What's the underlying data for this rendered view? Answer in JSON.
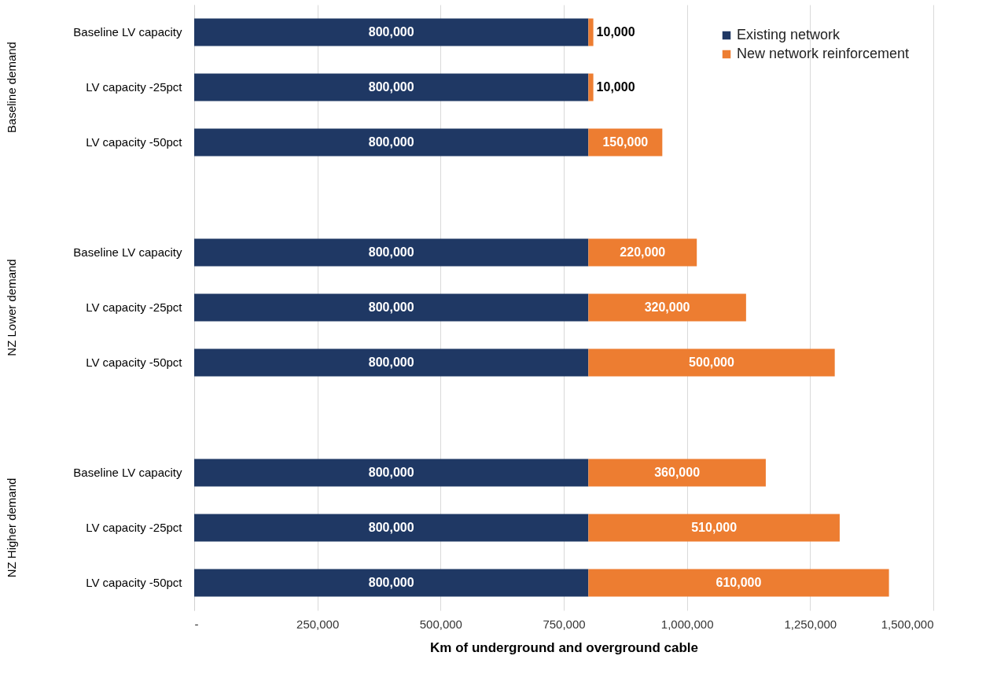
{
  "chart_data": {
    "type": "bar",
    "orientation": "horizontal",
    "stacked": true,
    "xlabel": "Km of underground and overground cable",
    "categories": [
      "Baseline LV capacity",
      "LV capacity -25pct",
      "LV capacity -50pct",
      null,
      "Baseline LV capacity",
      "LV capacity -25pct",
      "LV capacity -50pct",
      null,
      "Baseline LV capacity",
      "LV capacity -25pct",
      "LV capacity -50pct"
    ],
    "series": [
      {
        "name": "Existing network",
        "color": "#1f3864",
        "values": [
          800000,
          800000,
          800000,
          null,
          800000,
          800000,
          800000,
          null,
          800000,
          800000,
          800000
        ],
        "value_labels": [
          "800,000",
          "800,000",
          "800,000",
          null,
          "800,000",
          "800,000",
          "800,000",
          null,
          "800,000",
          "800,000",
          "800,000"
        ]
      },
      {
        "name": "New network reinforcement",
        "color": "#ed7d31",
        "values": [
          10000,
          10000,
          150000,
          null,
          220000,
          320000,
          500000,
          null,
          360000,
          510000,
          610000
        ],
        "value_labels": [
          "10,000",
          "10,000",
          "150,000",
          null,
          "220,000",
          "320,000",
          "500,000",
          null,
          "360,000",
          "510,000",
          "610,000"
        ]
      }
    ],
    "xlim": [
      0,
      1500000
    ],
    "xticks": [
      {
        "value": 0,
        "label": "-"
      },
      {
        "value": 250000,
        "label": "250,000"
      },
      {
        "value": 500000,
        "label": "500,000"
      },
      {
        "value": 750000,
        "label": "750,000"
      },
      {
        "value": 1000000,
        "label": "1,000,000"
      },
      {
        "value": 1250000,
        "label": "1,250,000"
      },
      {
        "value": 1500000,
        "label": "1,500,000"
      }
    ],
    "grid": "x",
    "legend": "top right",
    "annotations": [
      "Baseline demand",
      "NZ Lower demand",
      "NZ Higher demand"
    ]
  }
}
